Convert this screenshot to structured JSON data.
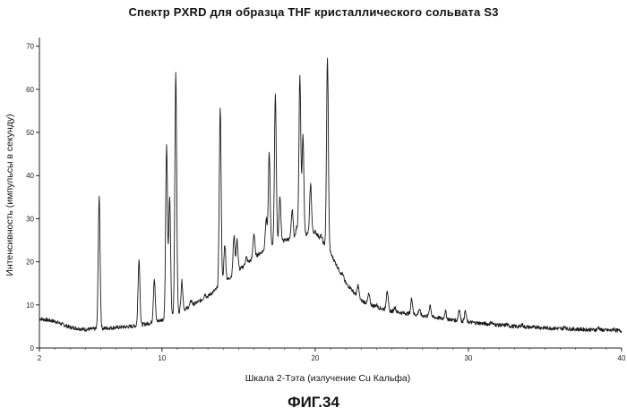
{
  "figure_label": "ФИГ.34",
  "chart_data": {
    "type": "line",
    "title": "Спектр PXRD для образца THF кристаллического сольвата S3",
    "xlabel": "Шкала 2-Тэта (излучение Cu Кальфа)",
    "ylabel": "Интенсивность (импульсы в секунду)",
    "xlim": [
      2,
      40
    ],
    "ylim": [
      0,
      72
    ],
    "x_ticks": [
      2,
      10,
      20,
      30,
      40
    ],
    "y_ticks": [
      0,
      10,
      20,
      30,
      40,
      50,
      60,
      70
    ],
    "baseline": [
      [
        2,
        6.8
      ],
      [
        3,
        6.2
      ],
      [
        4,
        4.8
      ],
      [
        5,
        4.3
      ],
      [
        6,
        4.5
      ],
      [
        8,
        5.0
      ],
      [
        9,
        5.6
      ],
      [
        10,
        6.5
      ],
      [
        11,
        8.0
      ],
      [
        12,
        10.0
      ],
      [
        13,
        12.0
      ],
      [
        14,
        15.0
      ],
      [
        15,
        18.0
      ],
      [
        16,
        21.0
      ],
      [
        17,
        23.5
      ],
      [
        18,
        25.0
      ],
      [
        19,
        26.0
      ],
      [
        20,
        27.0
      ],
      [
        21,
        22.0
      ],
      [
        22,
        15.0
      ],
      [
        23,
        11.0
      ],
      [
        24,
        9.5
      ],
      [
        25,
        8.5
      ],
      [
        27,
        7.5
      ],
      [
        30,
        6.0
      ],
      [
        33,
        5.0
      ],
      [
        36,
        4.5
      ],
      [
        40,
        4.0
      ]
    ],
    "peaks": [
      {
        "x": 5.9,
        "h": 34.8
      },
      {
        "x": 8.5,
        "h": 20.5
      },
      {
        "x": 9.5,
        "h": 16.0
      },
      {
        "x": 10.3,
        "h": 46.8
      },
      {
        "x": 10.5,
        "h": 35.0
      },
      {
        "x": 10.9,
        "h": 63.5
      },
      {
        "x": 11.3,
        "h": 15.5
      },
      {
        "x": 11.9,
        "h": 11.0
      },
      {
        "x": 12.8,
        "h": 12.5
      },
      {
        "x": 13.8,
        "h": 55.5
      },
      {
        "x": 14.1,
        "h": 24.0
      },
      {
        "x": 14.7,
        "h": 26.0
      },
      {
        "x": 14.9,
        "h": 25.0
      },
      {
        "x": 15.5,
        "h": 21.0
      },
      {
        "x": 16.0,
        "h": 26.5
      },
      {
        "x": 16.8,
        "h": 30.0
      },
      {
        "x": 17.0,
        "h": 45.0
      },
      {
        "x": 17.4,
        "h": 58.5
      },
      {
        "x": 17.7,
        "h": 35.0
      },
      {
        "x": 18.1,
        "h": 22.0
      },
      {
        "x": 18.5,
        "h": 32.0
      },
      {
        "x": 18.8,
        "h": 28.0
      },
      {
        "x": 19.0,
        "h": 63.0
      },
      {
        "x": 19.2,
        "h": 49.0
      },
      {
        "x": 19.7,
        "h": 38.0
      },
      {
        "x": 20.0,
        "h": 27.0
      },
      {
        "x": 20.4,
        "h": 26.0
      },
      {
        "x": 20.8,
        "h": 67.0
      },
      {
        "x": 21.8,
        "h": 17.0
      },
      {
        "x": 22.3,
        "h": 14.0
      },
      {
        "x": 22.8,
        "h": 14.5
      },
      {
        "x": 23.5,
        "h": 12.5
      },
      {
        "x": 24.0,
        "h": 10.0
      },
      {
        "x": 24.7,
        "h": 13.5
      },
      {
        "x": 25.2,
        "h": 9.5
      },
      {
        "x": 26.3,
        "h": 11.5
      },
      {
        "x": 26.8,
        "h": 9.0
      },
      {
        "x": 27.5,
        "h": 10.0
      },
      {
        "x": 28.5,
        "h": 8.5
      },
      {
        "x": 29.4,
        "h": 9.0
      },
      {
        "x": 29.8,
        "h": 8.5
      },
      {
        "x": 31.5,
        "h": 6.0
      },
      {
        "x": 32.5,
        "h": 5.5
      },
      {
        "x": 33.5,
        "h": 5.5
      },
      {
        "x": 34.5,
        "h": 5.0
      },
      {
        "x": 36.3,
        "h": 5.0
      },
      {
        "x": 38.5,
        "h": 4.8
      },
      {
        "x": 39.5,
        "h": 4.5
      }
    ]
  }
}
